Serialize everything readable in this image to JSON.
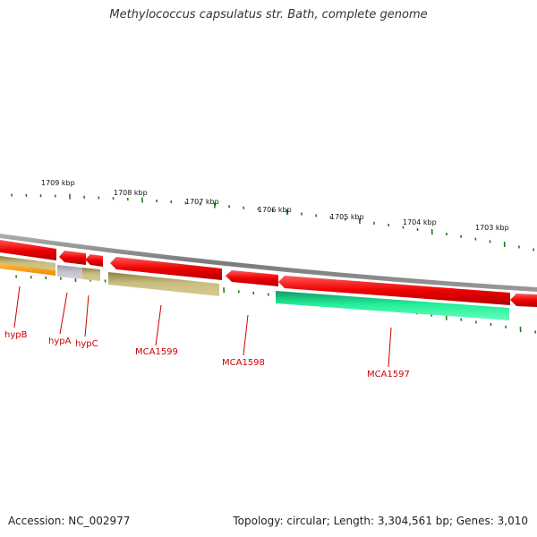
{
  "title": "Methylococcus capsulatus str. Bath, complete genome",
  "footer": {
    "accession": "Accession: NC_002977",
    "stats": "Topology: circular; Length: 3,304,561 bp; Genes: 3,010"
  },
  "ticks": [
    "1709 kbp",
    "1708 kbp",
    "1707 kbp",
    "1706 kbp",
    "1705 kbp",
    "1704 kbp",
    "1703 kbp"
  ],
  "genes": [
    "hypB",
    "hypA",
    "hypC",
    "MCA1599",
    "MCA1598",
    "MCA1597"
  ],
  "colors": {
    "backbone": "#808080",
    "cds": "#ee1111",
    "tick": "#1f7a1f",
    "label": "#cc0000",
    "cog_olive": "#c8bd80",
    "cog_orange": "#ff9900",
    "cog_gray": "#b0b0b8",
    "cog_green": "#22ee99"
  }
}
